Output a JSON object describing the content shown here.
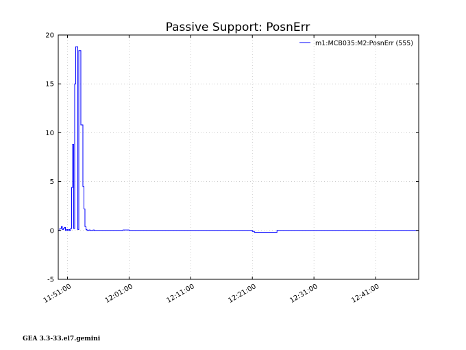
{
  "chart_data": {
    "type": "line",
    "title": "Passive Support:  PosnErr",
    "xlabel": "",
    "ylabel": "",
    "x_unit": "time",
    "xlim": [
      "11:49:30",
      "12:48:00"
    ],
    "ylim": [
      -5,
      20
    ],
    "y_ticks": [
      -5,
      0,
      5,
      10,
      15,
      20
    ],
    "x_ticks": [
      "11:51:00",
      "12:01:00",
      "12:11:00",
      "12:21:00",
      "12:31:00",
      "12:41:00"
    ],
    "grid": true,
    "legend_position": "top-right",
    "series": [
      {
        "name": "m1:MCB035:M2:PosnErr (555)",
        "color": "#0000ff",
        "step": true,
        "x": [
          "11:49:30",
          "11:49:45",
          "11:50:00",
          "11:50:10",
          "11:50:20",
          "11:50:30",
          "11:50:40",
          "11:50:50",
          "11:51:00",
          "11:51:10",
          "11:51:20",
          "11:51:30",
          "11:51:40",
          "11:51:50",
          "11:52:00",
          "11:52:10",
          "11:52:20",
          "11:52:30",
          "11:52:40",
          "11:52:50",
          "11:53:00",
          "11:53:10",
          "11:53:20",
          "11:53:30",
          "11:53:40",
          "11:53:50",
          "11:54:00",
          "11:54:10",
          "11:54:20",
          "11:54:30",
          "11:54:40",
          "11:54:50",
          "11:55:00",
          "11:55:10",
          "11:55:20",
          "11:55:30",
          "11:56:00",
          "11:57:00",
          "11:58:00",
          "11:59:00",
          "12:00:00",
          "12:01:00",
          "12:05:00",
          "12:10:00",
          "12:15:00",
          "12:20:00",
          "12:21:00",
          "12:21:20",
          "12:25:00",
          "12:30:00",
          "12:35:00",
          "12:40:00",
          "12:45:00",
          "12:48:00"
        ],
        "values": [
          0.0,
          0.2,
          0.4,
          0.1,
          0.2,
          0.3,
          0.0,
          0.1,
          0.0,
          0.1,
          0.0,
          0.2,
          4.4,
          8.8,
          0.2,
          15.0,
          18.8,
          18.8,
          0.1,
          18.4,
          18.4,
          10.8,
          10.8,
          4.5,
          2.2,
          0.4,
          0.1,
          0.0,
          0.0,
          0.05,
          0.0,
          0.0,
          0.0,
          0.05,
          0.0,
          0.0,
          0.0,
          0.0,
          0.0,
          0.0,
          0.05,
          0.0,
          0.0,
          0.0,
          0.0,
          0.0,
          -0.1,
          -0.2,
          0.0,
          0.0,
          0.0,
          0.0,
          0.0,
          0.0
        ]
      }
    ]
  },
  "footer": {
    "text": "GEA 3.3-33.el7.gemini"
  }
}
